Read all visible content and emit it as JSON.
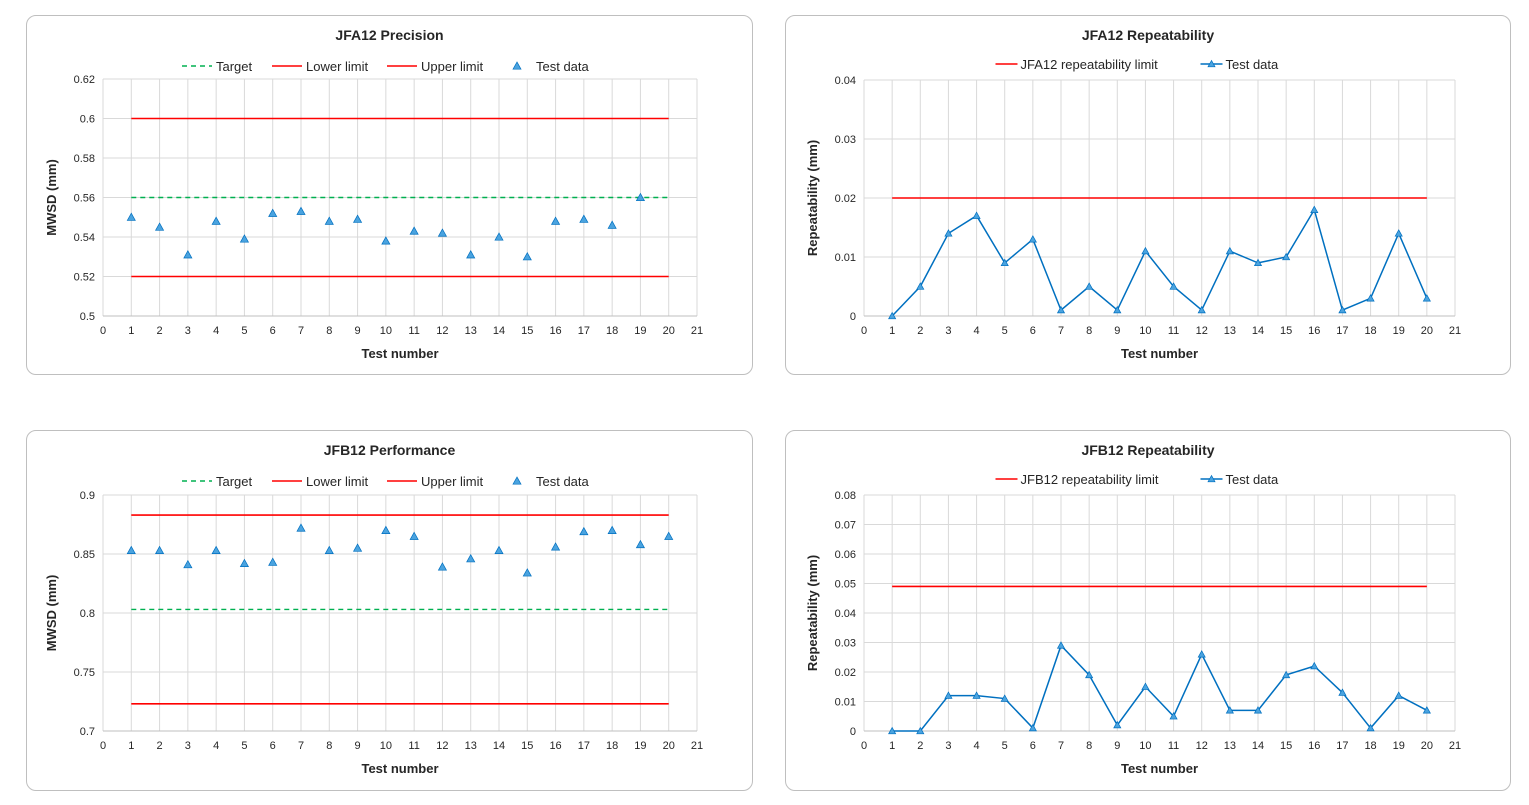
{
  "colors": {
    "target": "#00b050",
    "limit": "#ff0000",
    "data": "#0070c0",
    "marker_fill": "#4aa3df"
  },
  "chart_data": [
    {
      "id": "p1",
      "type": "scatter",
      "title": "JFA12 Precision",
      "xlabel": "Test number",
      "ylabel": "MWSD (mm)",
      "xlim": [
        0,
        21
      ],
      "ylim": [
        0.5,
        0.62
      ],
      "y_ticks": [
        "0.5",
        "0.52",
        "0.54",
        "0.56",
        "0.58",
        "0.6",
        "0.62"
      ],
      "x_ticks": [
        "0",
        "1",
        "2",
        "3",
        "4",
        "5",
        "6",
        "7",
        "8",
        "9",
        "10",
        "11",
        "12",
        "13",
        "14",
        "15",
        "16",
        "17",
        "18",
        "19",
        "20",
        "21"
      ],
      "legend": [
        "Target",
        "Lower limit",
        "Upper limit",
        "Test data"
      ],
      "target": 0.56,
      "lower_limit": 0.52,
      "upper_limit": 0.6,
      "x": [
        1,
        2,
        3,
        4,
        5,
        6,
        7,
        8,
        9,
        10,
        11,
        12,
        13,
        14,
        15,
        16,
        17,
        18,
        19
      ],
      "values": [
        0.55,
        0.545,
        0.531,
        0.548,
        0.539,
        0.552,
        0.553,
        0.548,
        0.549,
        0.538,
        0.543,
        0.542,
        0.531,
        0.54,
        0.53,
        0.548,
        0.549,
        0.546,
        0.56
      ]
    },
    {
      "id": "p2",
      "type": "line",
      "title": "JFA12 Repeatability",
      "xlabel": "Test number",
      "ylabel": "Repeatability (mm)",
      "xlim": [
        0,
        21
      ],
      "ylim": [
        0,
        0.04
      ],
      "y_ticks": [
        "0",
        "0.01",
        "0.02",
        "0.03",
        "0.04"
      ],
      "x_ticks": [
        "0",
        "1",
        "2",
        "3",
        "4",
        "5",
        "6",
        "7",
        "8",
        "9",
        "10",
        "11",
        "12",
        "13",
        "14",
        "15",
        "16",
        "17",
        "18",
        "19",
        "20",
        "21"
      ],
      "legend": [
        "JFA12 repeatability limit",
        "Test data"
      ],
      "limit": 0.02,
      "x": [
        1,
        2,
        3,
        4,
        5,
        6,
        7,
        8,
        9,
        10,
        11,
        12,
        13,
        14,
        15,
        16,
        17,
        18,
        19,
        20
      ],
      "values": [
        0,
        0.005,
        0.014,
        0.017,
        0.009,
        0.013,
        0.001,
        0.005,
        0.001,
        0.011,
        0.005,
        0.001,
        0.011,
        0.009,
        0.01,
        0.018,
        0.001,
        0.003,
        0.014,
        0.003
      ]
    },
    {
      "id": "p3",
      "type": "scatter",
      "title": "JFB12 Performance",
      "xlabel": "Test number",
      "ylabel": "MWSD (mm)",
      "xlim": [
        0,
        21
      ],
      "ylim": [
        0.7,
        0.9
      ],
      "y_ticks": [
        "0.7",
        "0.75",
        "0.8",
        "0.85",
        "0.9"
      ],
      "x_ticks": [
        "0",
        "1",
        "2",
        "3",
        "4",
        "5",
        "6",
        "7",
        "8",
        "9",
        "10",
        "11",
        "12",
        "13",
        "14",
        "15",
        "16",
        "17",
        "18",
        "19",
        "20",
        "21"
      ],
      "legend": [
        "Target",
        "Lower limit",
        "Upper limit",
        "Test data"
      ],
      "target": 0.803,
      "lower_limit": 0.723,
      "upper_limit": 0.883,
      "x": [
        1,
        2,
        3,
        4,
        5,
        6,
        7,
        8,
        9,
        10,
        11,
        12,
        13,
        14,
        15,
        16,
        17,
        18,
        19,
        20
      ],
      "values": [
        0.853,
        0.853,
        0.841,
        0.853,
        0.842,
        0.843,
        0.872,
        0.853,
        0.855,
        0.87,
        0.865,
        0.839,
        0.846,
        0.853,
        0.834,
        0.856,
        0.869,
        0.87,
        0.858,
        0.865
      ]
    },
    {
      "id": "p4",
      "type": "line",
      "title": "JFB12 Repeatability",
      "xlabel": "Test number",
      "ylabel": "Repeatability (mm)",
      "xlim": [
        0,
        21
      ],
      "ylim": [
        0,
        0.08
      ],
      "y_ticks": [
        "0",
        "0.01",
        "0.02",
        "0.03",
        "0.04",
        "0.05",
        "0.06",
        "0.07",
        "0.08"
      ],
      "x_ticks": [
        "0",
        "1",
        "2",
        "3",
        "4",
        "5",
        "6",
        "7",
        "8",
        "9",
        "10",
        "11",
        "12",
        "13",
        "14",
        "15",
        "16",
        "17",
        "18",
        "19",
        "20",
        "21"
      ],
      "legend": [
        "JFB12 repeatability limit",
        "Test data"
      ],
      "limit": 0.049,
      "x": [
        1,
        2,
        3,
        4,
        5,
        6,
        7,
        8,
        9,
        10,
        11,
        12,
        13,
        14,
        15,
        16,
        17,
        18,
        19,
        20
      ],
      "values": [
        0,
        0,
        0.012,
        0.012,
        0.011,
        0.001,
        0.029,
        0.019,
        0.002,
        0.015,
        0.005,
        0.026,
        0.007,
        0.007,
        0.019,
        0.022,
        0.013,
        0.001,
        0.012,
        0.007
      ]
    }
  ]
}
